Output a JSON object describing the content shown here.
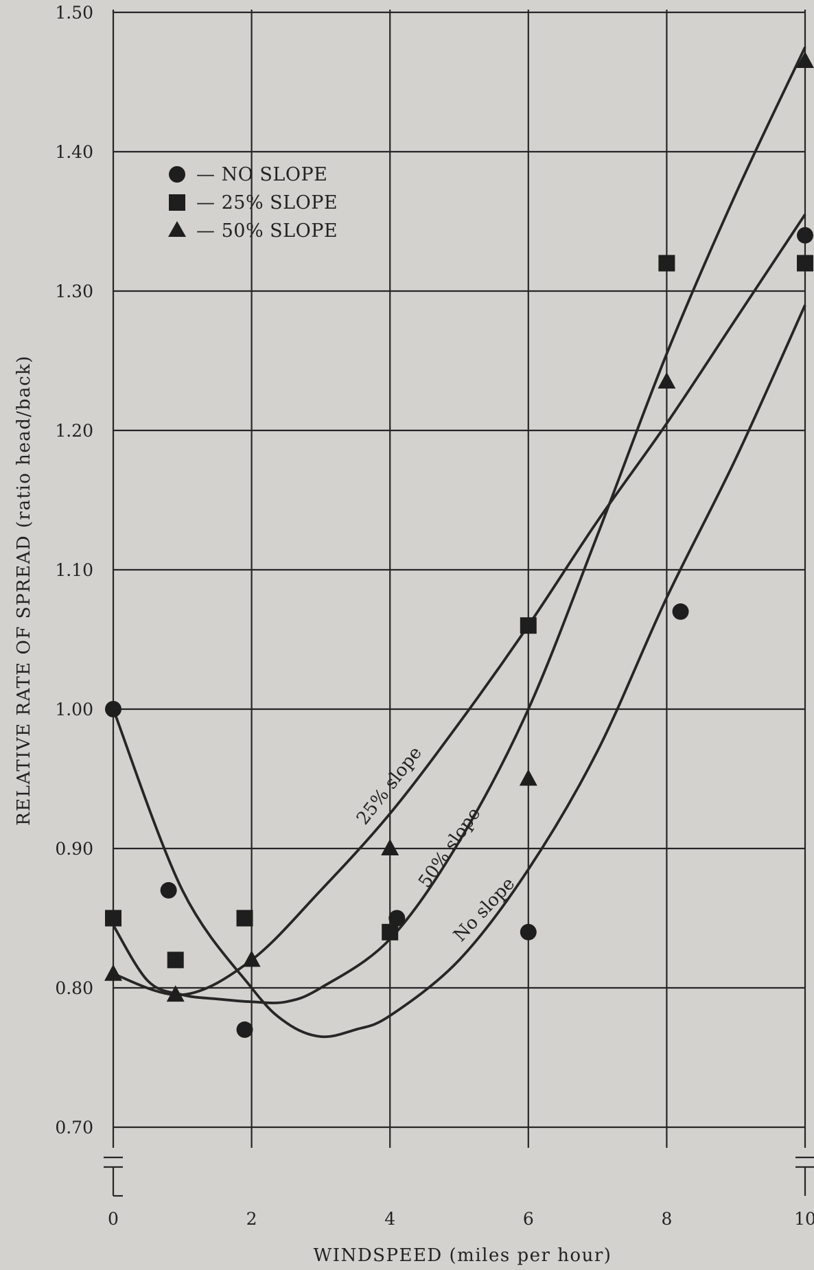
{
  "chart_data": {
    "type": "scatter",
    "title": "",
    "xlabel": "WINDSPEED (miles per hour)",
    "ylabel": "RELATIVE RATE OF SPREAD (ratio head/back)",
    "xlim": [
      0,
      10
    ],
    "ylim": [
      0.7,
      1.5
    ],
    "y_axis_break": true,
    "x_ticks": [
      "0",
      "2",
      "4",
      "6",
      "8",
      "10"
    ],
    "y_ticks": [
      "1.50",
      "1.40",
      "1.30",
      "1.20",
      "1.10",
      "1.00",
      "0.90",
      "0.80",
      "0.70"
    ],
    "grid": true,
    "legend_position": "top-left",
    "legend": [
      {
        "marker": "circle",
        "label": "— NO SLOPE"
      },
      {
        "marker": "square",
        "label": "— 25% SLOPE"
      },
      {
        "marker": "triangle",
        "label": "— 50% SLOPE"
      }
    ],
    "series": [
      {
        "marker": "circle",
        "points": [
          [
            0,
            1.0
          ],
          [
            0.8,
            0.87
          ],
          [
            1.9,
            0.77
          ],
          [
            4.1,
            0.85
          ],
          [
            6.0,
            0.84
          ],
          [
            8.2,
            1.07
          ],
          [
            10.0,
            1.34
          ]
        ],
        "curve": [
          [
            0,
            1.0
          ],
          [
            1,
            0.87
          ],
          [
            2,
            0.8
          ],
          [
            2.5,
            0.775
          ],
          [
            3,
            0.765
          ],
          [
            3.5,
            0.77
          ],
          [
            4,
            0.78
          ],
          [
            5,
            0.82
          ],
          [
            6,
            0.885
          ],
          [
            7,
            0.97
          ],
          [
            8,
            1.08
          ],
          [
            9,
            1.18
          ],
          [
            10,
            1.29
          ]
        ],
        "curve_label": "No slope"
      },
      {
        "marker": "square",
        "points": [
          [
            0,
            0.85
          ],
          [
            0.9,
            0.82
          ],
          [
            1.9,
            0.85
          ],
          [
            4.0,
            0.84
          ],
          [
            6.0,
            1.06
          ],
          [
            8.0,
            1.32
          ],
          [
            10.0,
            1.32
          ]
        ],
        "curve": [
          [
            0,
            0.81
          ],
          [
            1,
            0.795
          ],
          [
            2,
            0.82
          ],
          [
            3,
            0.87
          ],
          [
            4,
            0.925
          ],
          [
            5,
            0.99
          ],
          [
            6,
            1.06
          ],
          [
            7,
            1.135
          ],
          [
            8,
            1.205
          ],
          [
            9,
            1.28
          ],
          [
            10,
            1.355
          ]
        ],
        "curve_label": "25% slope"
      },
      {
        "marker": "triangle",
        "points": [
          [
            0,
            0.81
          ],
          [
            0.9,
            0.795
          ],
          [
            2.0,
            0.82
          ],
          [
            4.0,
            0.9
          ],
          [
            6.0,
            0.95
          ],
          [
            8.0,
            1.235
          ],
          [
            10.0,
            1.465
          ]
        ],
        "curve": [
          [
            0,
            0.845
          ],
          [
            0.5,
            0.805
          ],
          [
            1,
            0.795
          ],
          [
            1.5,
            0.792
          ],
          [
            2,
            0.79
          ],
          [
            2.5,
            0.79
          ],
          [
            3,
            0.8
          ],
          [
            4,
            0.835
          ],
          [
            5,
            0.905
          ],
          [
            6,
            1.0
          ],
          [
            7,
            1.125
          ],
          [
            8,
            1.255
          ],
          [
            9,
            1.37
          ],
          [
            10,
            1.475
          ]
        ],
        "curve_label": "50% slope"
      }
    ]
  }
}
